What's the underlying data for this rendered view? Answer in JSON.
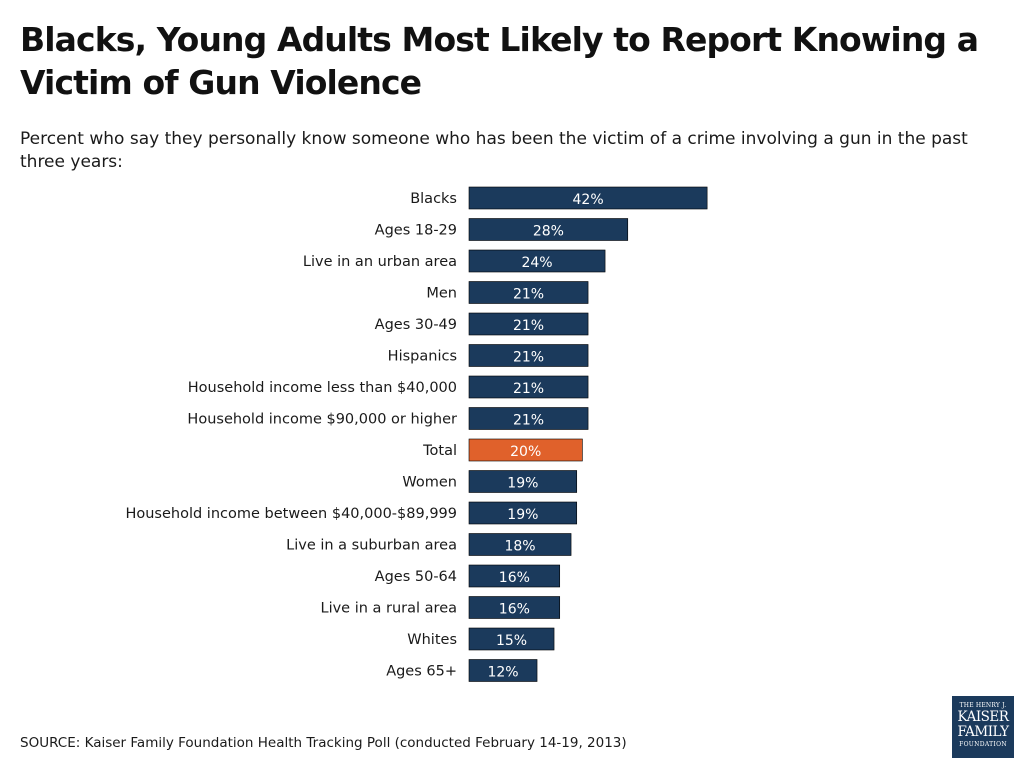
{
  "title": "Blacks, Young Adults Most Likely to Report Knowing a Victim of Gun Violence",
  "subtitle": "Percent who say they personally know someone who has been the victim of a crime involving a gun in the past three years:",
  "source": "SOURCE: Kaiser Family Foundation Health Tracking Poll (conducted February 14-19, 2013)",
  "logo": {
    "line1": "THE HENRY J.",
    "line2": "KAISER",
    "line3": "FAMILY",
    "line4": "FOUNDATION"
  },
  "colors": {
    "bar": "#1b3a5c",
    "highlight": "#e0612b",
    "bar_text": "#ffffff",
    "label_text": "#1a1a1a"
  },
  "chart_data": {
    "type": "bar",
    "orientation": "horizontal",
    "title": "Blacks, Young Adults Most Likely to Report Knowing a Victim of Gun Violence",
    "subtitle": "Percent who say they personally know someone who has been the victim of a crime involving a gun in the past three years:",
    "xlabel": "",
    "ylabel": "",
    "unit": "%",
    "xlim": [
      0,
      42
    ],
    "grid": false,
    "legend": "none",
    "highlight_category": "Total",
    "categories": [
      "Blacks",
      "Ages 18-29",
      "Live in an urban area",
      "Men",
      "Ages 30-49",
      "Hispanics",
      "Household income less than $40,000",
      "Household income $90,000 or higher",
      "Total",
      "Women",
      "Household income between $40,000-$89,999",
      "Live in a suburban area",
      "Ages 50-64",
      "Live in a rural area",
      "Whites",
      "Ages 65+"
    ],
    "values": [
      42,
      28,
      24,
      21,
      21,
      21,
      21,
      21,
      20,
      19,
      19,
      18,
      16,
      16,
      15,
      12
    ],
    "data_labels": [
      "42%",
      "28%",
      "24%",
      "21%",
      "21%",
      "21%",
      "21%",
      "21%",
      "20%",
      "19%",
      "19%",
      "18%",
      "16%",
      "16%",
      "15%",
      "12%"
    ]
  }
}
